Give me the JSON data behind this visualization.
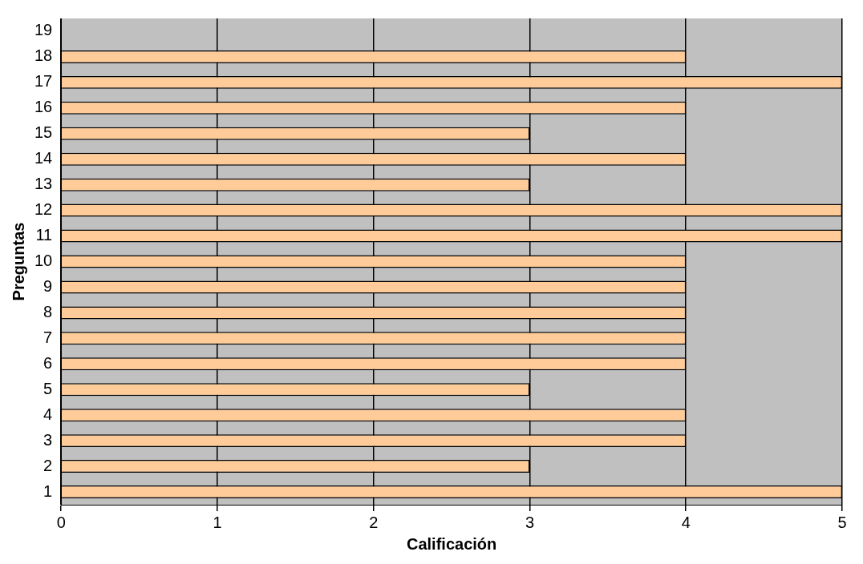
{
  "chart_data": {
    "type": "bar",
    "orientation": "horizontal",
    "xlabel": "Calificación",
    "ylabel": "Preguntas",
    "categories": [
      "19",
      "18",
      "17",
      "16",
      "15",
      "14",
      "13",
      "12",
      "11",
      "10",
      "9",
      "8",
      "7",
      "6",
      "5",
      "4",
      "3",
      "2",
      "1"
    ],
    "values": [
      null,
      4,
      5,
      4,
      3,
      4,
      3,
      5,
      5,
      4,
      4,
      4,
      4,
      4,
      3,
      4,
      4,
      3,
      5
    ],
    "color": "#ffcc99",
    "xlim": [
      0,
      5
    ],
    "xticks": [
      0,
      1,
      2,
      3,
      4,
      5
    ],
    "grid": "x",
    "legend": false
  }
}
